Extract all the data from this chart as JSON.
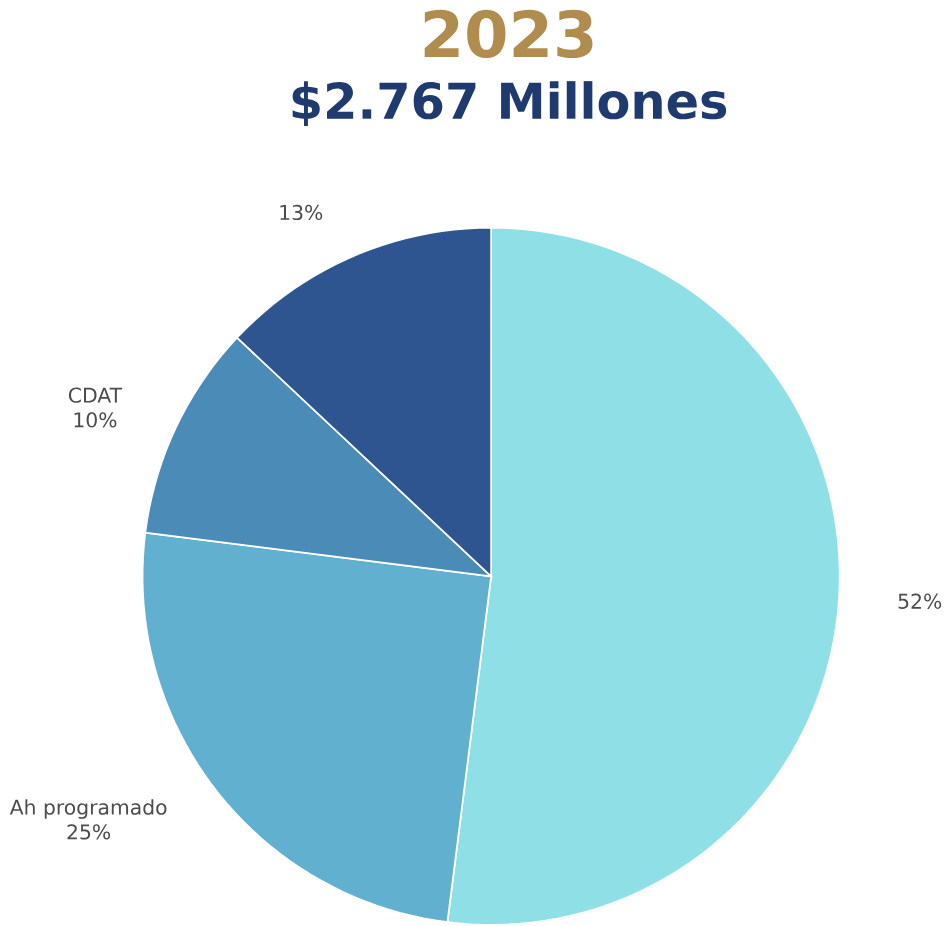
{
  "chart_data": {
    "type": "pie",
    "title": "2023",
    "subtitle": "$2.767 Millones",
    "categories": [
      null,
      "Ah programado",
      "CDAT",
      null
    ],
    "values": [
      52,
      25,
      10,
      13
    ],
    "colors": [
      "#8ee0e6",
      "#62b0d0",
      "#4a8bb8",
      "#2f5590"
    ],
    "value_labels": [
      "52%",
      "25%",
      "10%",
      "13%"
    ]
  }
}
